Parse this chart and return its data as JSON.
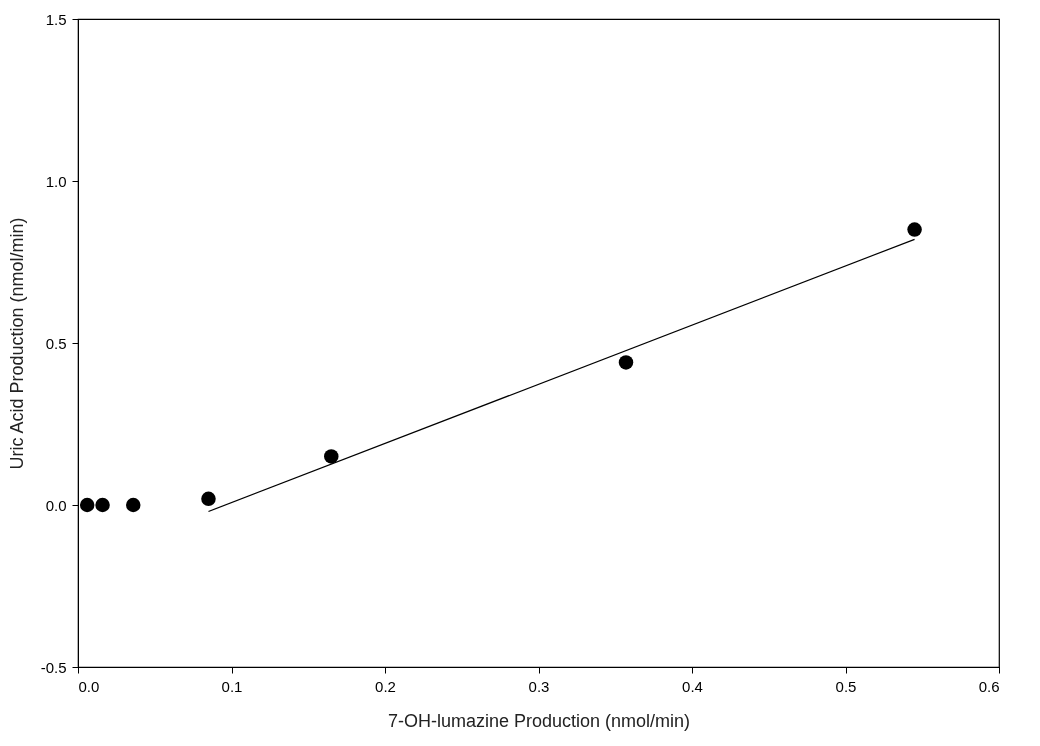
{
  "chart_data": {
    "type": "scatter",
    "xlabel": "7-OH-lumazine Production (nmol/min)",
    "ylabel": "Uric Acid Production (nmol/min)",
    "xlim": [
      0,
      0.6
    ],
    "ylim": [
      -0.5,
      1.5
    ],
    "xticks": [
      {
        "value": 0,
        "label": "0.0"
      },
      0.1,
      0.2,
      0.3,
      0.4,
      0.5,
      0.6
    ],
    "yticks": [
      -0.5,
      {
        "value": 0,
        "label": "0.0"
      },
      0.5,
      {
        "value": 1,
        "label": "1.0"
      },
      1.5
    ],
    "grid": false,
    "series": [
      {
        "color": "#000000",
        "marker": "circle",
        "x": [
          0.006,
          0.016,
          0.036,
          0.085,
          0.165,
          0.357,
          0.545
        ],
        "values": [
          0,
          0,
          0,
          0.019,
          0.15,
          0.44,
          0.85
        ]
      },
      {
        "type": "line",
        "color": "#000000",
        "line_style": "solid",
        "x": [
          0.085,
          0.545
        ],
        "values": [
          -0.02,
          0.82
        ]
      }
    ]
  }
}
